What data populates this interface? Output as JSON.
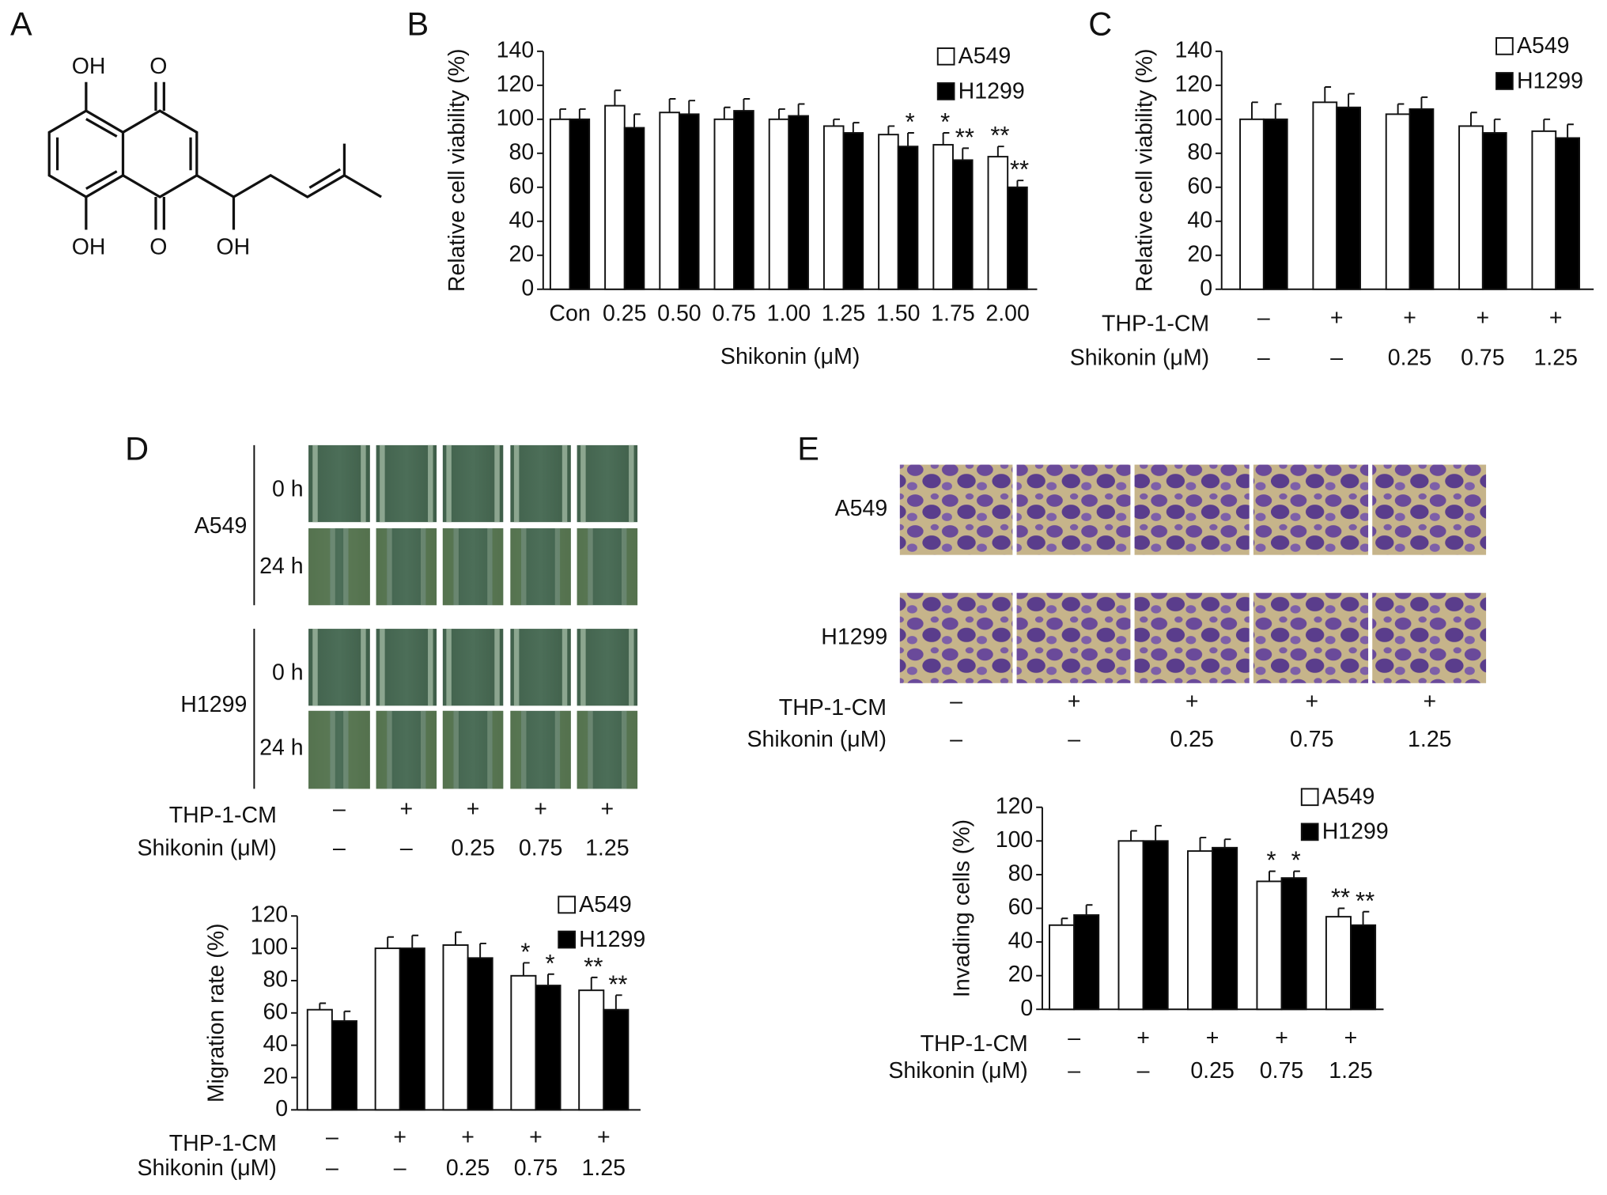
{
  "panel_labels": [
    "A",
    "B",
    "C",
    "D",
    "E"
  ],
  "structure_labels": [
    "OH",
    "O",
    "OH",
    "O",
    "OH"
  ],
  "migration_images": {
    "cell_lines": [
      "A549",
      "H1299"
    ],
    "times": [
      "0 h",
      "24 h"
    ],
    "condition_rows": [
      {
        "label": "THP-1-CM",
        "values": [
          "–",
          "+",
          "+",
          "+",
          "+"
        ]
      },
      {
        "label": "Shikonin (μM)",
        "values": [
          "–",
          "–",
          "0.25",
          "0.75",
          "1.25"
        ]
      }
    ]
  },
  "invasion_images": {
    "cell_lines": [
      "A549",
      "H1299"
    ],
    "condition_rows": [
      {
        "label": "THP-1-CM",
        "values": [
          "–",
          "+",
          "+",
          "+",
          "+"
        ]
      },
      {
        "label": "Shikonin (μM)",
        "values": [
          "–",
          "–",
          "0.25",
          "0.75",
          "1.25"
        ]
      }
    ]
  },
  "chart_data": [
    {
      "type": "bar",
      "y_label": "Relative cell viability (%)",
      "x_label": "Shikonin (μM)",
      "categories": [
        "Con",
        "0.25",
        "0.50",
        "0.75",
        "1.00",
        "1.25",
        "1.50",
        "1.75",
        "2.00"
      ],
      "series": [
        {
          "name": "A549",
          "color": "#ffffff",
          "values": [
            100,
            108,
            104,
            100,
            100,
            96,
            91,
            85,
            78
          ],
          "errors": [
            6,
            9,
            8,
            7,
            6,
            4,
            5,
            7,
            6
          ],
          "significance": [
            null,
            null,
            null,
            null,
            null,
            null,
            null,
            "*",
            "**"
          ]
        },
        {
          "name": "H1299",
          "color": "#000000",
          "values": [
            100,
            95,
            103,
            105,
            102,
            92,
            84,
            76,
            60
          ],
          "errors": [
            6,
            8,
            8,
            7,
            7,
            6,
            8,
            7,
            4
          ],
          "significance": [
            null,
            null,
            null,
            null,
            null,
            null,
            "*",
            "**",
            "**"
          ]
        }
      ],
      "ylim": [
        0,
        140
      ],
      "yticks": [
        0,
        20,
        40,
        60,
        80,
        100,
        120,
        140
      ],
      "legend": "top-right"
    },
    {
      "type": "bar",
      "y_label": "Relative cell viability (%)",
      "condition_rows": [
        {
          "label": "THP-1-CM",
          "values": [
            "–",
            "+",
            "+",
            "+",
            "+"
          ]
        },
        {
          "label": "Shikonin (μM)",
          "values": [
            "–",
            "–",
            "0.25",
            "0.75",
            "1.25"
          ]
        }
      ],
      "series": [
        {
          "name": "A549",
          "color": "#ffffff",
          "values": [
            100,
            110,
            103,
            96,
            93
          ],
          "errors": [
            10,
            9,
            6,
            8,
            7
          ]
        },
        {
          "name": "H1299",
          "color": "#000000",
          "values": [
            100,
            107,
            106,
            92,
            89
          ],
          "errors": [
            9,
            8,
            7,
            8,
            8
          ]
        }
      ],
      "ylim": [
        0,
        140
      ],
      "yticks": [
        0,
        20,
        40,
        60,
        80,
        100,
        120,
        140
      ],
      "legend": "top-right"
    },
    {
      "type": "bar",
      "y_label": "Migration rate (%)",
      "condition_rows": [
        {
          "label": "THP-1-CM",
          "values": [
            "–",
            "+",
            "+",
            "+",
            "+"
          ]
        },
        {
          "label": "Shikonin (μM)",
          "values": [
            "–",
            "–",
            "0.25",
            "0.75",
            "1.25"
          ]
        }
      ],
      "series": [
        {
          "name": "A549",
          "color": "#ffffff",
          "values": [
            62,
            100,
            102,
            83,
            74
          ],
          "errors": [
            4,
            7,
            8,
            8,
            8
          ],
          "significance": [
            null,
            null,
            null,
            "*",
            "**"
          ]
        },
        {
          "name": "H1299",
          "color": "#000000",
          "values": [
            55,
            100,
            94,
            77,
            62
          ],
          "errors": [
            6,
            8,
            9,
            7,
            9
          ],
          "significance": [
            null,
            null,
            null,
            "*",
            "**"
          ]
        }
      ],
      "ylim": [
        0,
        120
      ],
      "yticks": [
        0,
        20,
        40,
        60,
        80,
        100,
        120
      ],
      "legend": "top-right"
    },
    {
      "type": "bar",
      "y_label": "Invading cells (%)",
      "condition_rows": [
        {
          "label": "THP-1-CM",
          "values": [
            "–",
            "+",
            "+",
            "+",
            "+"
          ]
        },
        {
          "label": "Shikonin (μM)",
          "values": [
            "–",
            "–",
            "0.25",
            "0.75",
            "1.25"
          ]
        }
      ],
      "series": [
        {
          "name": "A549",
          "color": "#ffffff",
          "values": [
            50,
            100,
            94,
            76,
            55
          ],
          "errors": [
            4,
            6,
            8,
            6,
            5
          ],
          "significance": [
            null,
            null,
            null,
            "*",
            "**"
          ]
        },
        {
          "name": "H1299",
          "color": "#000000",
          "values": [
            56,
            100,
            96,
            78,
            50
          ],
          "errors": [
            6,
            9,
            5,
            4,
            8
          ],
          "significance": [
            null,
            null,
            null,
            "*",
            "**"
          ]
        }
      ],
      "ylim": [
        0,
        120
      ],
      "yticks": [
        0,
        20,
        40,
        60,
        80,
        100,
        120
      ],
      "legend": "top-right"
    }
  ]
}
